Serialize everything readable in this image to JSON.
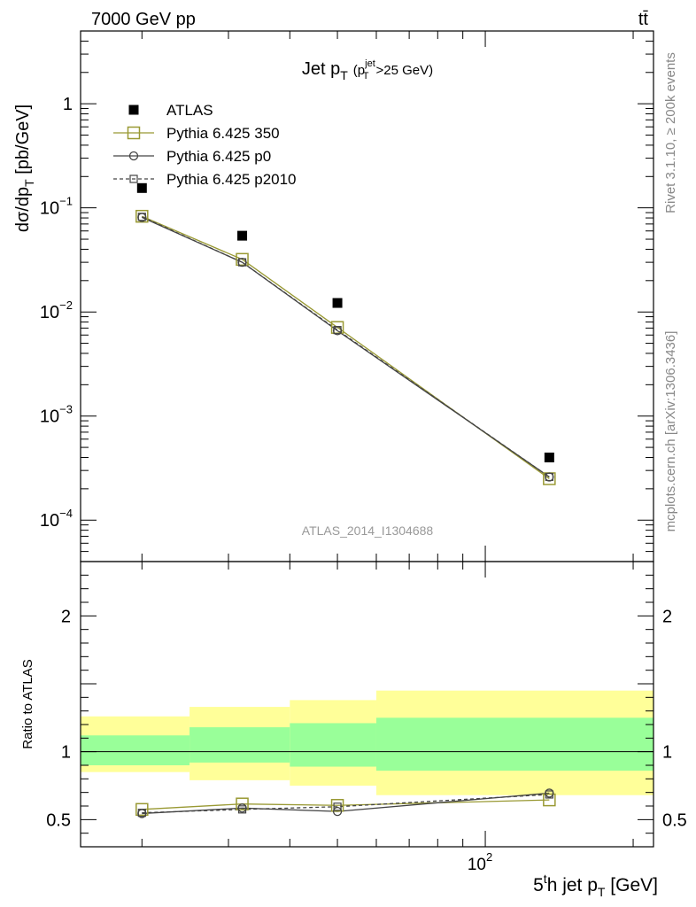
{
  "header": {
    "energy_label": "7000 GeV pp",
    "process_label": "tt̄"
  },
  "side_labels": {
    "rivet": "Rivet 3.1.10, ≥ 200k events",
    "mcplots": "mcplots.cern.ch [arXiv:1306.3436]"
  },
  "chart_data": [
    {
      "type": "scatter",
      "panel": "main",
      "title": "Jet p_T (p_T^jet>25 GeV)",
      "title_main": "Jet p",
      "title_sub": "T",
      "title_paren_open": "(p",
      "title_paren_sup": "jet",
      "title_paren_sub": "T",
      "title_paren_rest": ">25 GeV)",
      "ylabel": "dσ/dp_T [pb/GeV]",
      "ylabel_main": "dσ/dp",
      "ylabel_sub": "T",
      "ylabel_rest": " [pb/GeV]",
      "analysis_tag": "ATLAS_2014_I1304688",
      "x_scale": "log",
      "y_scale": "log",
      "xlim": [
        15,
        220
      ],
      "ylim": [
        4e-05,
        5
      ],
      "y_tick_labels": [
        {
          "value": 1,
          "base": "1",
          "exp": ""
        },
        {
          "value": 0.1,
          "base": "10",
          "exp": "−1"
        },
        {
          "value": 0.01,
          "base": "10",
          "exp": "−2"
        },
        {
          "value": 0.001,
          "base": "10",
          "exp": "−3"
        },
        {
          "value": 0.0001,
          "base": "10",
          "exp": "−4"
        }
      ],
      "legend_position": "top-left",
      "series": [
        {
          "name": "ATLAS",
          "marker": "filled-square",
          "color": "#000000",
          "x": [
            20,
            32,
            50,
            135
          ],
          "y": [
            0.155,
            0.054,
            0.0122,
            0.0004
          ]
        },
        {
          "name": "Pythia 6.425 350",
          "marker": "open-square",
          "color": "#999933",
          "line": "solid",
          "x": [
            20,
            32,
            50,
            135
          ],
          "y": [
            0.083,
            0.032,
            0.0071,
            0.00025
          ]
        },
        {
          "name": "Pythia 6.425 p0",
          "marker": "open-circle",
          "color": "#444444",
          "line": "solid",
          "x": [
            20,
            32,
            50,
            135
          ],
          "y": [
            0.081,
            0.03,
            0.0066,
            0.00026
          ]
        },
        {
          "name": "Pythia 6.425 p2010",
          "marker": "open-square-small",
          "color": "#444444",
          "line": "dashed",
          "x": [
            20,
            32,
            50,
            135
          ],
          "y": [
            0.082,
            0.03,
            0.0067,
            0.00026
          ]
        }
      ]
    },
    {
      "type": "scatter",
      "panel": "ratio",
      "ylabel": "Ratio to ATLAS",
      "xlabel": "5^th jet p_T [GeV]",
      "xlabel_a": "5",
      "xlabel_sup": "t",
      "xlabel_b": "h jet p",
      "xlabel_sub": "T",
      "xlabel_rest": " [GeV]",
      "x_scale": "log",
      "xlim": [
        15,
        220
      ],
      "ylim": [
        0.3,
        2.4
      ],
      "y_tick_labels": [
        {
          "value": 2,
          "label": "2"
        },
        {
          "value": 1,
          "label": "1"
        },
        {
          "value": 0.5,
          "label": "0.5"
        }
      ],
      "x_tick_labels": [
        {
          "value": 100,
          "base": "10",
          "exp": "2"
        }
      ],
      "bands": [
        {
          "x_low": 15,
          "x_high": 25,
          "inner": [
            0.9,
            1.12
          ],
          "outer": [
            0.85,
            1.26
          ]
        },
        {
          "x_low": 25,
          "x_high": 40,
          "inner": [
            0.92,
            1.18
          ],
          "outer": [
            0.79,
            1.33
          ]
        },
        {
          "x_low": 40,
          "x_high": 60,
          "inner": [
            0.89,
            1.21
          ],
          "outer": [
            0.75,
            1.38
          ]
        },
        {
          "x_low": 60,
          "x_high": 220,
          "inner": [
            0.86,
            1.25
          ],
          "outer": [
            0.68,
            1.45
          ]
        }
      ],
      "band_colors": {
        "inner": "#99ff99",
        "outer": "#ffff99"
      },
      "series": [
        {
          "name": "Pythia 6.425 350",
          "color": "#999933",
          "line": "solid",
          "marker": "open-square",
          "x": [
            20,
            32,
            50,
            135
          ],
          "y": [
            0.575,
            0.615,
            0.605,
            0.645
          ]
        },
        {
          "name": "Pythia 6.425 p0",
          "color": "#444444",
          "line": "solid",
          "marker": "open-circle",
          "x": [
            20,
            32,
            50,
            135
          ],
          "y": [
            0.545,
            0.585,
            0.56,
            0.695
          ]
        },
        {
          "name": "Pythia 6.425 p2010",
          "color": "#444444",
          "line": "dashed",
          "marker": "open-square-small",
          "x": [
            20,
            32,
            50,
            135
          ],
          "y": [
            0.55,
            0.575,
            0.595,
            0.685
          ]
        }
      ]
    }
  ]
}
